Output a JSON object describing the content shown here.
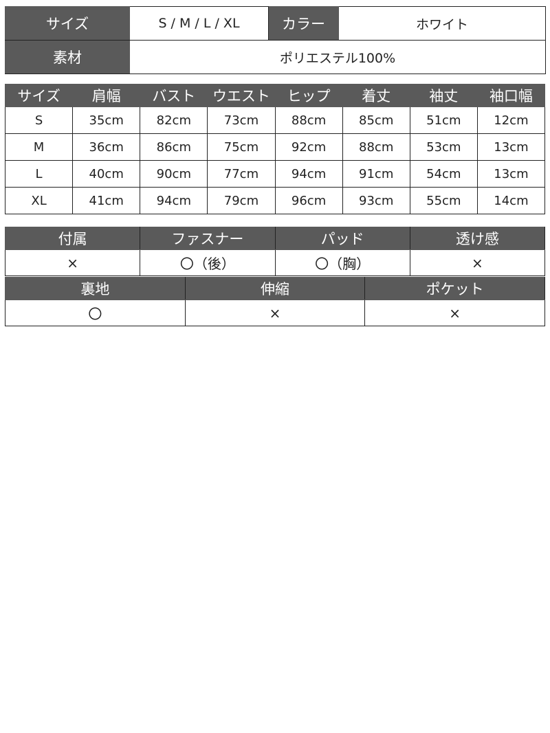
{
  "spec": {
    "size_label": "サイズ",
    "size_value": "S / M / L / XL",
    "color_label": "カラー",
    "color_value": "ホワイト",
    "material_label": "素材",
    "material_value": "ポリエステル100%"
  },
  "size_table": {
    "headers": [
      "サイズ",
      "肩幅",
      "バスト",
      "ウエスト",
      "ヒップ",
      "着丈",
      "袖丈",
      "袖口幅"
    ],
    "rows": [
      [
        "S",
        "35cm",
        "82cm",
        "73cm",
        "88cm",
        "85cm",
        "51cm",
        "12cm"
      ],
      [
        "M",
        "36cm",
        "86cm",
        "75cm",
        "92cm",
        "88cm",
        "53cm",
        "13cm"
      ],
      [
        "L",
        "40cm",
        "90cm",
        "77cm",
        "94cm",
        "91cm",
        "54cm",
        "13cm"
      ],
      [
        "XL",
        "41cm",
        "94cm",
        "79cm",
        "96cm",
        "93cm",
        "55cm",
        "14cm"
      ]
    ]
  },
  "features1": {
    "headers": [
      "付属",
      "ファスナー",
      "パッド",
      "透け感"
    ],
    "values": [
      "×",
      "〇（後）",
      "〇（胸）",
      "×"
    ]
  },
  "features2": {
    "headers": [
      "裏地",
      "伸縮",
      "ポケット"
    ],
    "values": [
      "〇",
      "×",
      "×"
    ]
  },
  "colors": {
    "header_bg": "#5a5a5a",
    "header_text": "#ffffff",
    "border": "#222222"
  }
}
